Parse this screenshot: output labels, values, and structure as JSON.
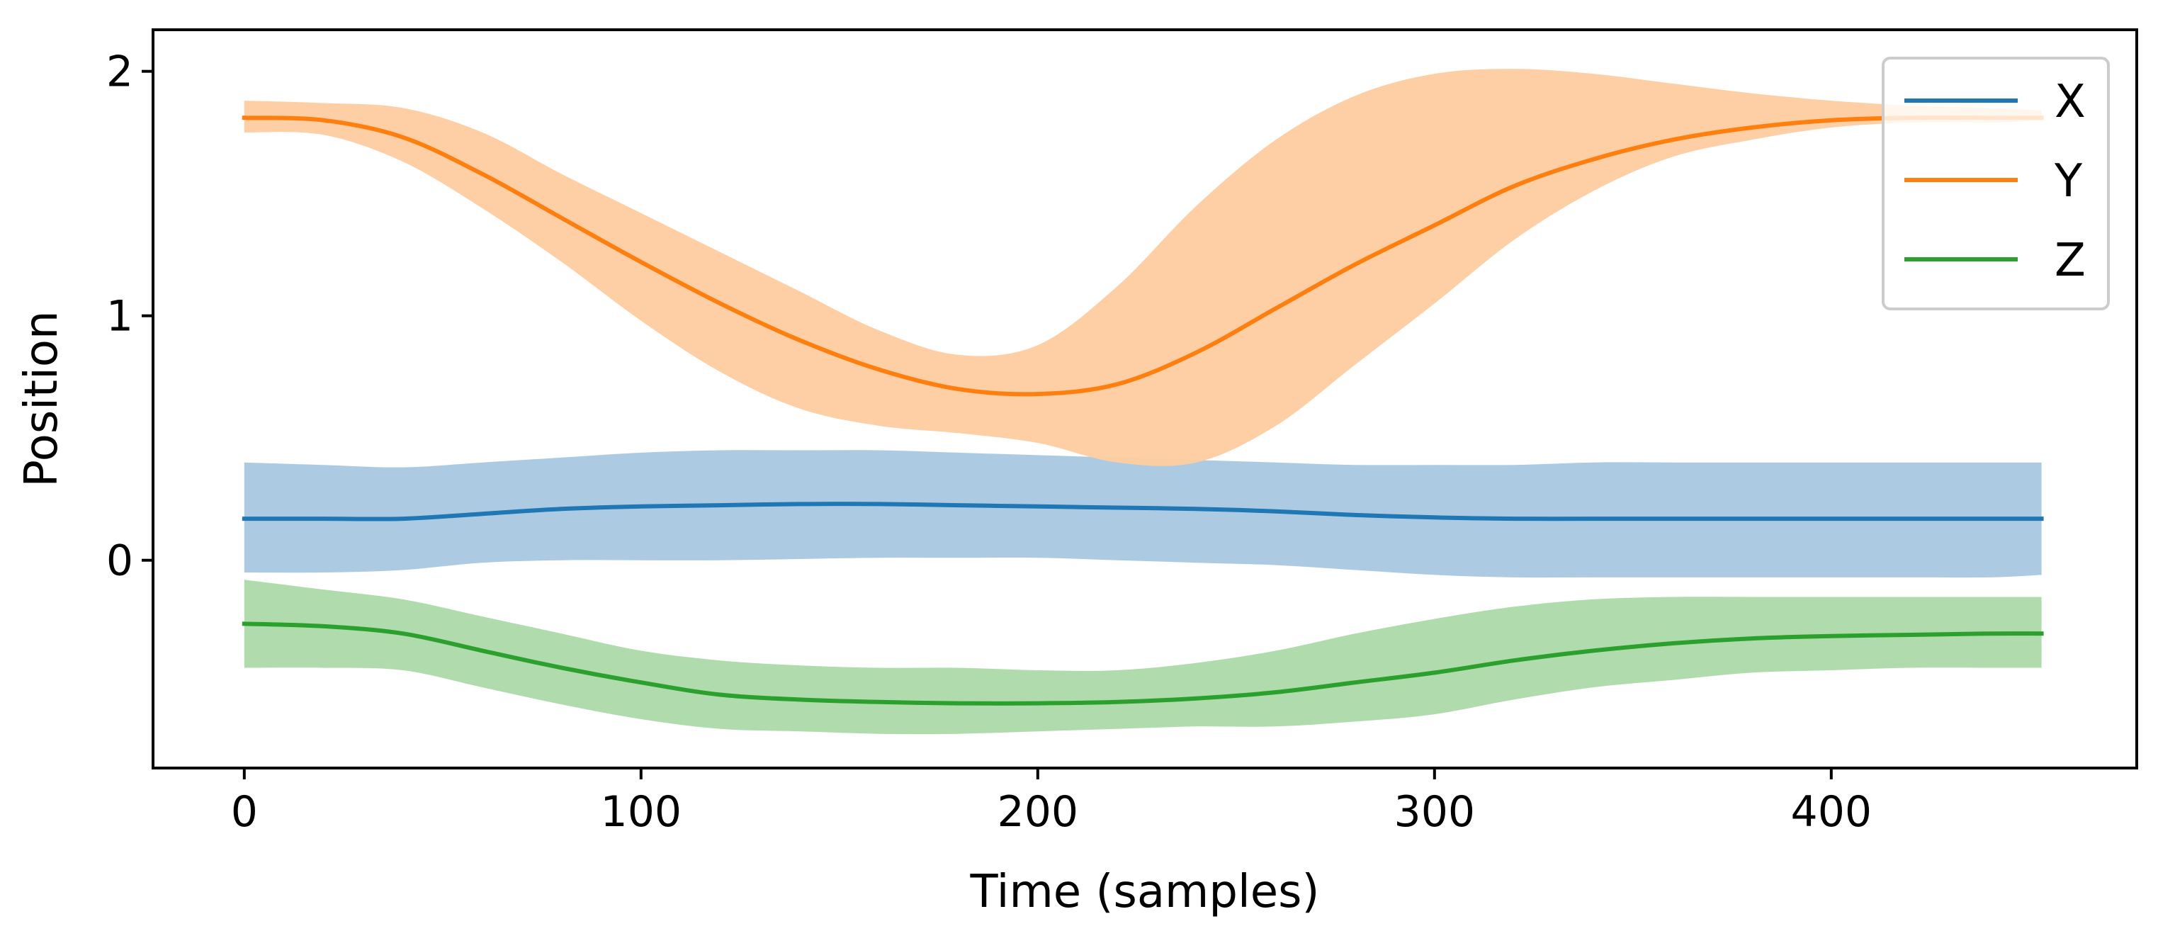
{
  "chart_data": {
    "type": "line",
    "title": "",
    "xlabel": "Time (samples)",
    "ylabel": "Position",
    "xlim": [
      -23,
      477
    ],
    "ylim": [
      -0.85,
      2.17
    ],
    "xticks": [
      {
        "value": 0,
        "label": "0"
      },
      {
        "value": 100,
        "label": "100"
      },
      {
        "value": 200,
        "label": "200"
      },
      {
        "value": 300,
        "label": "300"
      },
      {
        "value": 400,
        "label": "400"
      }
    ],
    "yticks": [
      {
        "value": 0,
        "label": "0"
      },
      {
        "value": 1,
        "label": "1"
      },
      {
        "value": 2,
        "label": "2"
      }
    ],
    "grid": false,
    "legend_position": "top-right",
    "band_description": "shaded region = mean ± spread",
    "series": [
      {
        "name": "X",
        "color": "#1f77b4",
        "band_color": "#a8c8e0",
        "x": [
          0,
          20,
          40,
          60,
          80,
          100,
          120,
          140,
          160,
          180,
          200,
          220,
          240,
          260,
          280,
          300,
          320,
          340,
          360,
          380,
          400,
          420,
          440,
          453
        ],
        "mean": [
          0.17,
          0.17,
          0.17,
          0.19,
          0.21,
          0.22,
          0.225,
          0.23,
          0.23,
          0.225,
          0.22,
          0.215,
          0.21,
          0.2,
          0.185,
          0.175,
          0.17,
          0.17,
          0.17,
          0.17,
          0.17,
          0.17,
          0.17,
          0.17
        ],
        "lower": [
          -0.05,
          -0.05,
          -0.04,
          -0.01,
          0.0,
          0.0,
          0.0,
          0.005,
          0.01,
          0.01,
          0.01,
          0.0,
          -0.01,
          -0.02,
          -0.04,
          -0.06,
          -0.07,
          -0.07,
          -0.07,
          -0.07,
          -0.07,
          -0.07,
          -0.07,
          -0.06
        ],
        "upper": [
          0.4,
          0.39,
          0.38,
          0.4,
          0.42,
          0.44,
          0.45,
          0.45,
          0.45,
          0.44,
          0.43,
          0.42,
          0.41,
          0.4,
          0.39,
          0.39,
          0.39,
          0.4,
          0.4,
          0.4,
          0.4,
          0.4,
          0.4,
          0.4
        ]
      },
      {
        "name": "Y",
        "color": "#ff7f0e",
        "band_color": "#fecc9f",
        "x": [
          0,
          20,
          40,
          60,
          80,
          100,
          120,
          140,
          160,
          180,
          200,
          220,
          240,
          260,
          280,
          300,
          320,
          340,
          360,
          380,
          400,
          420,
          440,
          453
        ],
        "mean": [
          1.81,
          1.8,
          1.73,
          1.58,
          1.4,
          1.22,
          1.05,
          0.9,
          0.78,
          0.7,
          0.68,
          0.72,
          0.85,
          1.03,
          1.21,
          1.37,
          1.53,
          1.64,
          1.72,
          1.77,
          1.8,
          1.81,
          1.81,
          1.81
        ],
        "lower": [
          1.75,
          1.74,
          1.63,
          1.44,
          1.22,
          0.98,
          0.77,
          0.62,
          0.55,
          0.52,
          0.48,
          0.4,
          0.4,
          0.55,
          0.8,
          1.05,
          1.31,
          1.51,
          1.65,
          1.72,
          1.77,
          1.79,
          1.79,
          1.8
        ],
        "upper": [
          1.88,
          1.87,
          1.85,
          1.75,
          1.58,
          1.42,
          1.26,
          1.1,
          0.94,
          0.84,
          0.88,
          1.12,
          1.45,
          1.72,
          1.9,
          1.99,
          2.01,
          1.99,
          1.95,
          1.91,
          1.88,
          1.86,
          1.85,
          1.84
        ]
      },
      {
        "name": "Z",
        "color": "#2ca02c",
        "band_color": "#acdaa9",
        "x": [
          0,
          20,
          40,
          60,
          80,
          100,
          120,
          140,
          160,
          180,
          200,
          220,
          240,
          260,
          280,
          300,
          320,
          340,
          360,
          380,
          400,
          420,
          440,
          453
        ],
        "mean": [
          -0.26,
          -0.27,
          -0.3,
          -0.37,
          -0.44,
          -0.5,
          -0.55,
          -0.57,
          -0.58,
          -0.585,
          -0.585,
          -0.58,
          -0.565,
          -0.54,
          -0.5,
          -0.46,
          -0.41,
          -0.37,
          -0.34,
          -0.32,
          -0.31,
          -0.305,
          -0.3,
          -0.3
        ],
        "lower": [
          -0.44,
          -0.44,
          -0.45,
          -0.52,
          -0.59,
          -0.65,
          -0.69,
          -0.7,
          -0.71,
          -0.71,
          -0.7,
          -0.69,
          -0.68,
          -0.68,
          -0.66,
          -0.63,
          -0.57,
          -0.52,
          -0.49,
          -0.46,
          -0.45,
          -0.44,
          -0.44,
          -0.44
        ],
        "upper": [
          -0.08,
          -0.12,
          -0.16,
          -0.23,
          -0.3,
          -0.37,
          -0.41,
          -0.43,
          -0.44,
          -0.44,
          -0.45,
          -0.45,
          -0.42,
          -0.37,
          -0.3,
          -0.24,
          -0.19,
          -0.16,
          -0.15,
          -0.15,
          -0.15,
          -0.15,
          -0.15,
          -0.15
        ]
      }
    ]
  }
}
